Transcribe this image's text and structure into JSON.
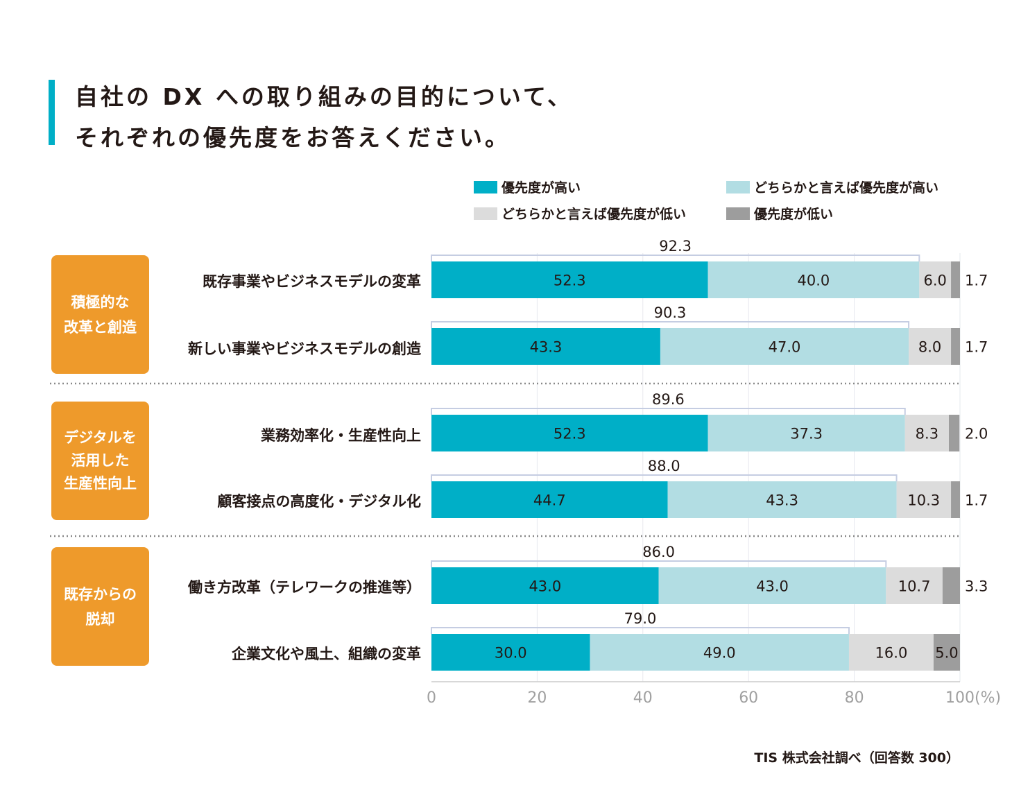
{
  "title": {
    "line1": "自社の DX への取り組みの目的について、",
    "line2": "それぞれの優先度をお答えください。"
  },
  "source": "TIS 株式会社調べ（回答数 300）",
  "colors": {
    "accent": "#00afc7",
    "high": "#00afc7",
    "somewhat_high": "#b2dde3",
    "somewhat_low": "#dcdcdc",
    "low": "#9d9d9d",
    "group_box": "#ee9a2b",
    "divider": "#888888",
    "bracket": "#c5cde2"
  },
  "groups": [
    {
      "lines": [
        "積極的な",
        "改革と創造"
      ]
    },
    {
      "lines": [
        "デジタルを",
        "活用した",
        "生産性向上"
      ]
    },
    {
      "lines": [
        "既存からの",
        "脱却"
      ]
    }
  ],
  "chart_data": {
    "type": "bar",
    "orientation": "horizontal",
    "stacked": true,
    "categories": [
      "既存事業やビジネスモデルの変革",
      "新しい事業やビジネスモデルの創造",
      "業務効率化・生産性向上",
      "顧客接点の高度化・デジタル化",
      "働き方改革（テレワークの推進等）",
      "企業文化や風土、組織の変革"
    ],
    "series": [
      {
        "name": "優先度が高い",
        "values": [
          52.3,
          43.3,
          52.3,
          44.7,
          43.0,
          30.0
        ]
      },
      {
        "name": "どちらかと言えば優先度が高い",
        "values": [
          40.0,
          47.0,
          37.3,
          43.3,
          43.0,
          49.0
        ]
      },
      {
        "name": "どちらかと言えば優先度が低い",
        "values": [
          6.0,
          8.0,
          8.3,
          10.3,
          10.7,
          16.0
        ]
      },
      {
        "name": "優先度が低い",
        "values": [
          1.7,
          1.7,
          2.0,
          1.7,
          3.3,
          5.0
        ]
      }
    ],
    "totals_high": [
      92.3,
      90.3,
      89.6,
      88.0,
      86.0,
      79.0
    ],
    "value_labels": {
      "high": [
        "52.3",
        "43.3",
        "52.3",
        "44.7",
        "43.0",
        "30.0"
      ],
      "somewhat_high": [
        "40.0",
        "47.0",
        "37.3",
        "43.3",
        "43.0",
        "49.0"
      ],
      "somewhat_low": [
        "6.0",
        "8.0",
        "8.3",
        "10.3",
        "10.7",
        "16.0"
      ],
      "low": [
        "1.7",
        "1.7",
        "2.0",
        "1.7",
        "3.3",
        "5.0"
      ],
      "totals": [
        "92.3",
        "90.3",
        "89.6",
        "88.0",
        "86.0",
        "79.0"
      ]
    },
    "xlim": [
      0,
      100
    ],
    "xticks": [
      "0",
      "20",
      "40",
      "60",
      "80",
      "100"
    ],
    "xticks_values": [
      0,
      20,
      40,
      60,
      80,
      100
    ],
    "xunit": "(%)",
    "legend_position": "top-right"
  }
}
